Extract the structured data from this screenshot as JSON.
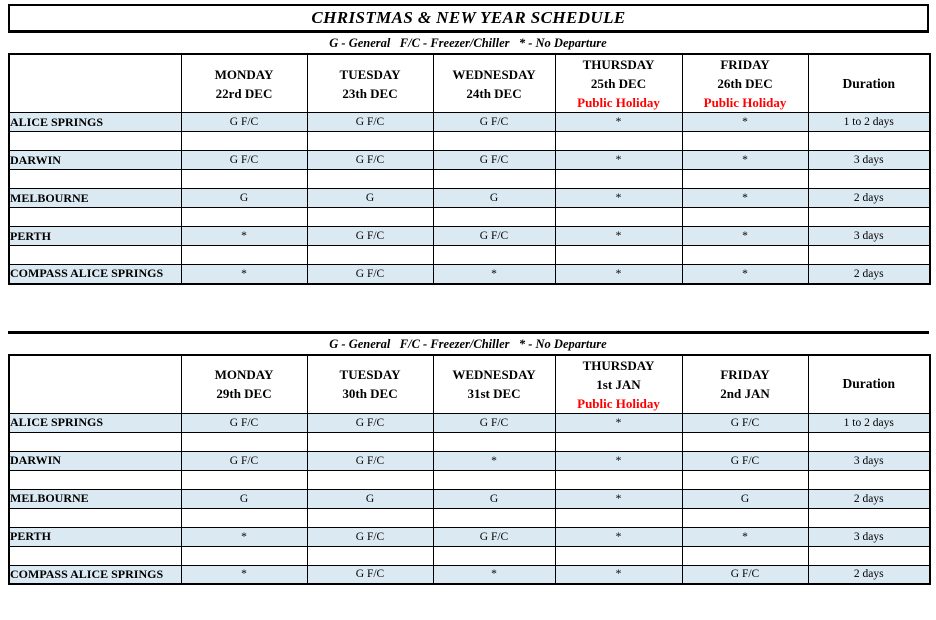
{
  "title": "CHRISTMAS & NEW YEAR SCHEDULE",
  "legend": "G - General   F/C - Freezer/Chiller   * - No Departure",
  "colors": {
    "row_highlight": "#DAE9F2",
    "holiday_red": "#FF0000",
    "border": "#000000"
  },
  "tables": [
    {
      "header": {
        "days": [
          {
            "day": "MONDAY",
            "date": "22rd DEC",
            "note": ""
          },
          {
            "day": "TUESDAY",
            "date": "23th DEC",
            "note": ""
          },
          {
            "day": "WEDNESDAY",
            "date": "24th DEC",
            "note": ""
          },
          {
            "day": "THURSDAY",
            "date": "25th DEC",
            "note": "Public Holiday"
          },
          {
            "day": "FRIDAY",
            "date": "26th DEC",
            "note": "Public Holiday"
          }
        ],
        "duration_label": "Duration"
      },
      "rows": [
        {
          "label": "ALICE SPRINGS",
          "cells": [
            "G F/C",
            "G F/C",
            "G F/C",
            "*",
            "*"
          ],
          "duration": "1 to 2 days"
        },
        {
          "label": "DARWIN",
          "cells": [
            "G F/C",
            "G F/C",
            "G F/C",
            "*",
            "*"
          ],
          "duration": "3 days"
        },
        {
          "label": "MELBOURNE",
          "cells": [
            "G",
            "G",
            "G",
            "*",
            "*"
          ],
          "duration": "2 days"
        },
        {
          "label": "PERTH",
          "cells": [
            "*",
            "G F/C",
            "G F/C",
            "*",
            "*"
          ],
          "duration": "3 days"
        },
        {
          "label": "COMPASS ALICE SPRINGS",
          "cells": [
            "*",
            "G F/C",
            "*",
            "*",
            "*"
          ],
          "duration": "2 days"
        }
      ]
    },
    {
      "header": {
        "days": [
          {
            "day": "MONDAY",
            "date": "29th DEC",
            "note": ""
          },
          {
            "day": "TUESDAY",
            "date": "30th DEC",
            "note": ""
          },
          {
            "day": "WEDNESDAY",
            "date": "31st DEC",
            "note": ""
          },
          {
            "day": "THURSDAY",
            "date": "1st JAN",
            "note": "Public Holiday"
          },
          {
            "day": "FRIDAY",
            "date": "2nd JAN",
            "note": ""
          }
        ],
        "duration_label": "Duration"
      },
      "rows": [
        {
          "label": "ALICE SPRINGS",
          "cells": [
            "G F/C",
            "G F/C",
            "G F/C",
            "*",
            "G F/C"
          ],
          "duration": "1 to 2 days"
        },
        {
          "label": "DARWIN",
          "cells": [
            "G F/C",
            "G F/C",
            "*",
            "*",
            "G F/C"
          ],
          "duration": "3 days"
        },
        {
          "label": "MELBOURNE",
          "cells": [
            "G",
            "G",
            "G",
            "*",
            "G"
          ],
          "duration": "2 days"
        },
        {
          "label": "PERTH",
          "cells": [
            "*",
            "G F/C",
            "G F/C",
            "*",
            "*"
          ],
          "duration": "3 days"
        },
        {
          "label": "COMPASS ALICE SPRINGS",
          "cells": [
            "*",
            "G F/C",
            "*",
            "*",
            "G F/C"
          ],
          "duration": "2 days"
        }
      ]
    }
  ]
}
